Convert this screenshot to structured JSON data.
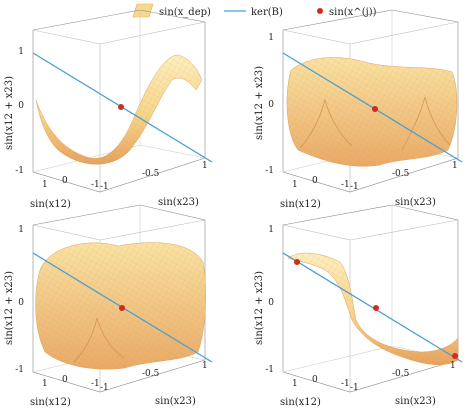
{
  "legend": {
    "placement": "top-center",
    "items": [
      {
        "label": "sin(x_dep)",
        "marker": "surface",
        "color": "#f3c66a"
      },
      {
        "label": "ker(B)",
        "marker": "line",
        "color": "#4a9fd4"
      },
      {
        "label": "sin(x^(j))",
        "marker": "dot",
        "color": "#d42a1e"
      }
    ]
  },
  "colors": {
    "surface_light": "#fbe7a8",
    "surface_dark": "#e09a56",
    "mesh": "#d98a4a",
    "line": "#4a9fd4",
    "point": "#d42a1e",
    "axis": "#555555"
  },
  "chart_data": [
    {
      "type": "surface3d",
      "panel": "top-left",
      "xlabel": "sin(x12)",
      "ylabel": "sin(x23)",
      "zlabel": "sin(x12 + x23)",
      "xlim": [
        -1,
        1
      ],
      "ylim": [
        -1,
        1
      ],
      "zlim": [
        -1,
        1
      ],
      "xticks": [
        "-1",
        "0",
        "1"
      ],
      "yticks": [
        "-1",
        "-0.5",
        "0",
        "0.5",
        "1"
      ],
      "zticks": [
        "-1",
        "0",
        "1"
      ],
      "z_ticks_shown": [
        "1",
        "0",
        "-1"
      ],
      "x_ticks_shown": [
        "1",
        "0",
        "-1"
      ],
      "y_ticks_shown": [
        "-1",
        "-0.5",
        "1"
      ],
      "surface_shape": "saddle-twist",
      "kernel_line": {
        "from": [
          1,
          -1,
          1
        ],
        "to": [
          -1,
          1,
          -1
        ]
      },
      "points": [
        [
          0,
          0,
          0
        ]
      ]
    },
    {
      "type": "surface3d",
      "panel": "top-right",
      "xlabel": "sin(x12)",
      "ylabel": "sin(x23)",
      "zlabel": "sin(x12 + x23)",
      "z_ticks_shown": [
        "1",
        "0",
        "-1"
      ],
      "x_ticks_shown": [
        "1",
        "0",
        "-1"
      ],
      "y_ticks_shown": [
        "-1",
        "-0.5",
        "1"
      ],
      "surface_shape": "pillow",
      "kernel_line": {
        "from": [
          1,
          -1,
          1
        ],
        "to": [
          -1,
          1,
          -1
        ]
      },
      "points": [
        [
          0,
          0,
          0
        ]
      ]
    },
    {
      "type": "surface3d",
      "panel": "bottom-left",
      "xlabel": "sin(x12)",
      "ylabel": "sin(x23)",
      "zlabel": "sin(x12 + x23)",
      "z_ticks_shown": [
        "1",
        "0",
        "-1"
      ],
      "x_ticks_shown": [
        "1",
        "0",
        "-1"
      ],
      "y_ticks_shown": [
        "-1",
        "-0.5",
        "1"
      ],
      "surface_shape": "pillow",
      "kernel_line": {
        "from": [
          1,
          -1,
          1
        ],
        "to": [
          -1,
          1,
          -1
        ]
      },
      "points": [
        [
          0,
          0,
          0
        ]
      ]
    },
    {
      "type": "surface3d",
      "panel": "bottom-right",
      "xlabel": "sin(x12)",
      "ylabel": "sin(x23)",
      "zlabel": "sin(x12 + x23)",
      "z_ticks_shown": [
        "1",
        "0",
        "-1"
      ],
      "x_ticks_shown": [
        "1",
        "0",
        "-1"
      ],
      "y_ticks_shown": [
        "-1",
        "-0.5",
        "1"
      ],
      "surface_shape": "s-fold",
      "kernel_line": {
        "from": [
          1,
          -1,
          1
        ],
        "to": [
          -1,
          1,
          -1
        ]
      },
      "points": [
        [
          1,
          -1,
          0.85
        ],
        [
          0,
          0,
          0
        ],
        [
          -1,
          1,
          -0.85
        ]
      ]
    }
  ]
}
